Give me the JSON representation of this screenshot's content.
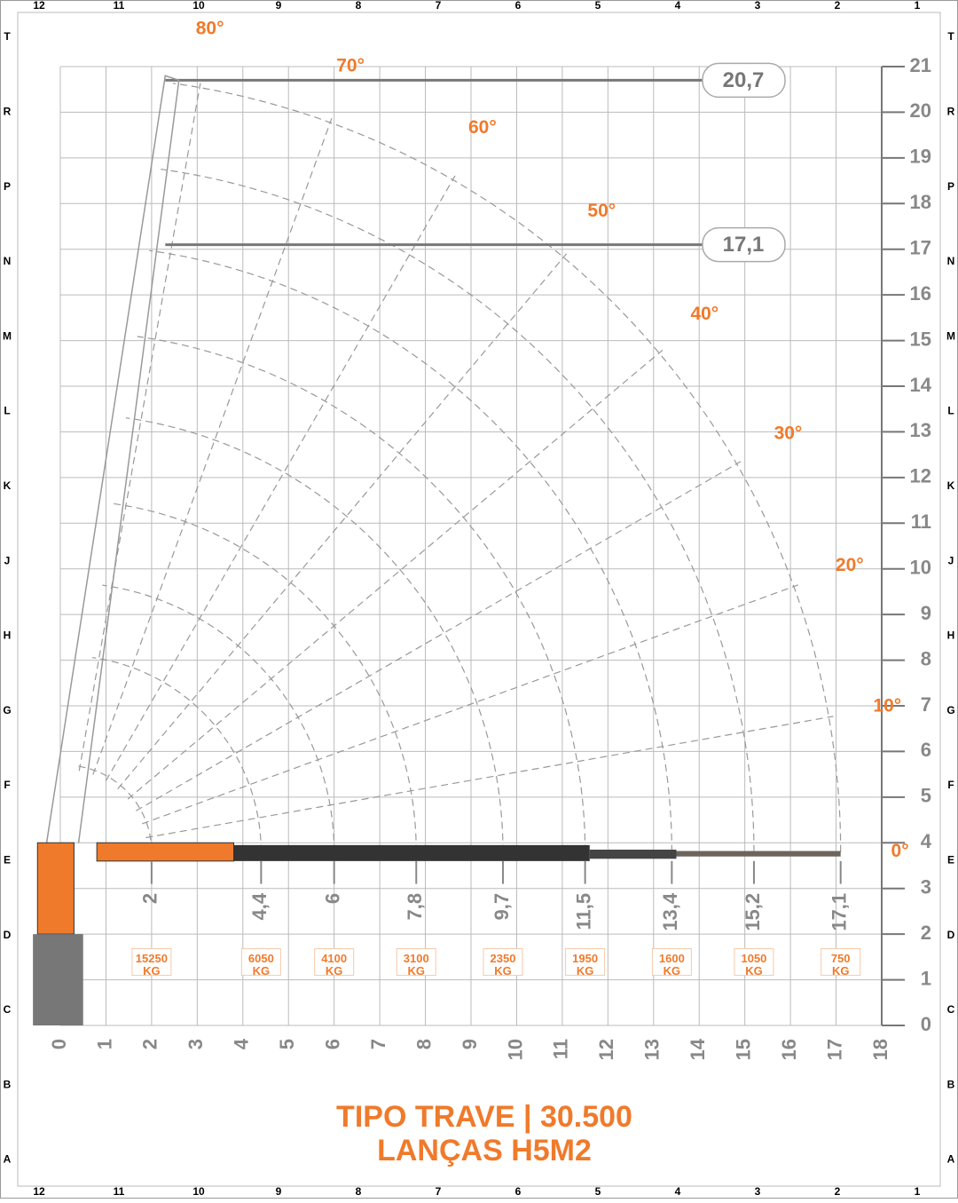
{
  "frame": {
    "columns": [
      "12",
      "11",
      "10",
      "9",
      "8",
      "7",
      "6",
      "5",
      "4",
      "3",
      "2",
      "1"
    ],
    "rows": [
      "T",
      "R",
      "P",
      "N",
      "M",
      "L",
      "K",
      "J",
      "H",
      "G",
      "F",
      "E",
      "D",
      "C",
      "B",
      "A"
    ]
  },
  "chart": {
    "xticks": [
      0,
      1,
      2,
      3,
      4,
      5,
      6,
      7,
      8,
      9,
      10,
      11,
      12,
      13,
      14,
      15,
      16,
      17,
      18
    ],
    "yticks": [
      0,
      1,
      2,
      3,
      4,
      5,
      6,
      7,
      8,
      9,
      10,
      11,
      12,
      13,
      14,
      15,
      16,
      17,
      18,
      19,
      20,
      21
    ],
    "angles": [
      {
        "value": 80,
        "label": "80°"
      },
      {
        "value": 70,
        "label": "70°"
      },
      {
        "value": 60,
        "label": "60°"
      },
      {
        "value": 50,
        "label": "50°"
      },
      {
        "value": 40,
        "label": "40°"
      },
      {
        "value": 30,
        "label": "30°"
      },
      {
        "value": 20,
        "label": "20°"
      },
      {
        "value": 10,
        "label": "10°"
      },
      {
        "value": 0,
        "label": "0°"
      }
    ],
    "heights": [
      {
        "value": 20.7,
        "label": "20,7"
      },
      {
        "value": 17.1,
        "label": "17,1"
      }
    ],
    "unit": "KG",
    "reaches": [
      {
        "reach": 2,
        "load": 15250
      },
      {
        "reach": {
          "value": 4.4,
          "label": "4,4"
        },
        "load": 6050
      },
      {
        "reach": 6,
        "load": 4100
      },
      {
        "reach": {
          "value": 7.8,
          "label": "7,8"
        },
        "load": 3100
      },
      {
        "reach": {
          "value": 9.7,
          "label": "9,7"
        },
        "load": 2350
      },
      {
        "reach": {
          "value": 11.5,
          "label": "11,5"
        },
        "load": 1950
      },
      {
        "reach": {
          "value": 13.4,
          "label": "13,4"
        },
        "load": 1600
      },
      {
        "reach": {
          "value": 15.2,
          "label": "15,2"
        },
        "load": 1050
      },
      {
        "reach": {
          "value": 17.1,
          "label": "17,1"
        },
        "load": 750
      }
    ]
  },
  "title": "TIPO TRAVE | 30.500",
  "subtitle": "LANÇAS H5M2"
}
